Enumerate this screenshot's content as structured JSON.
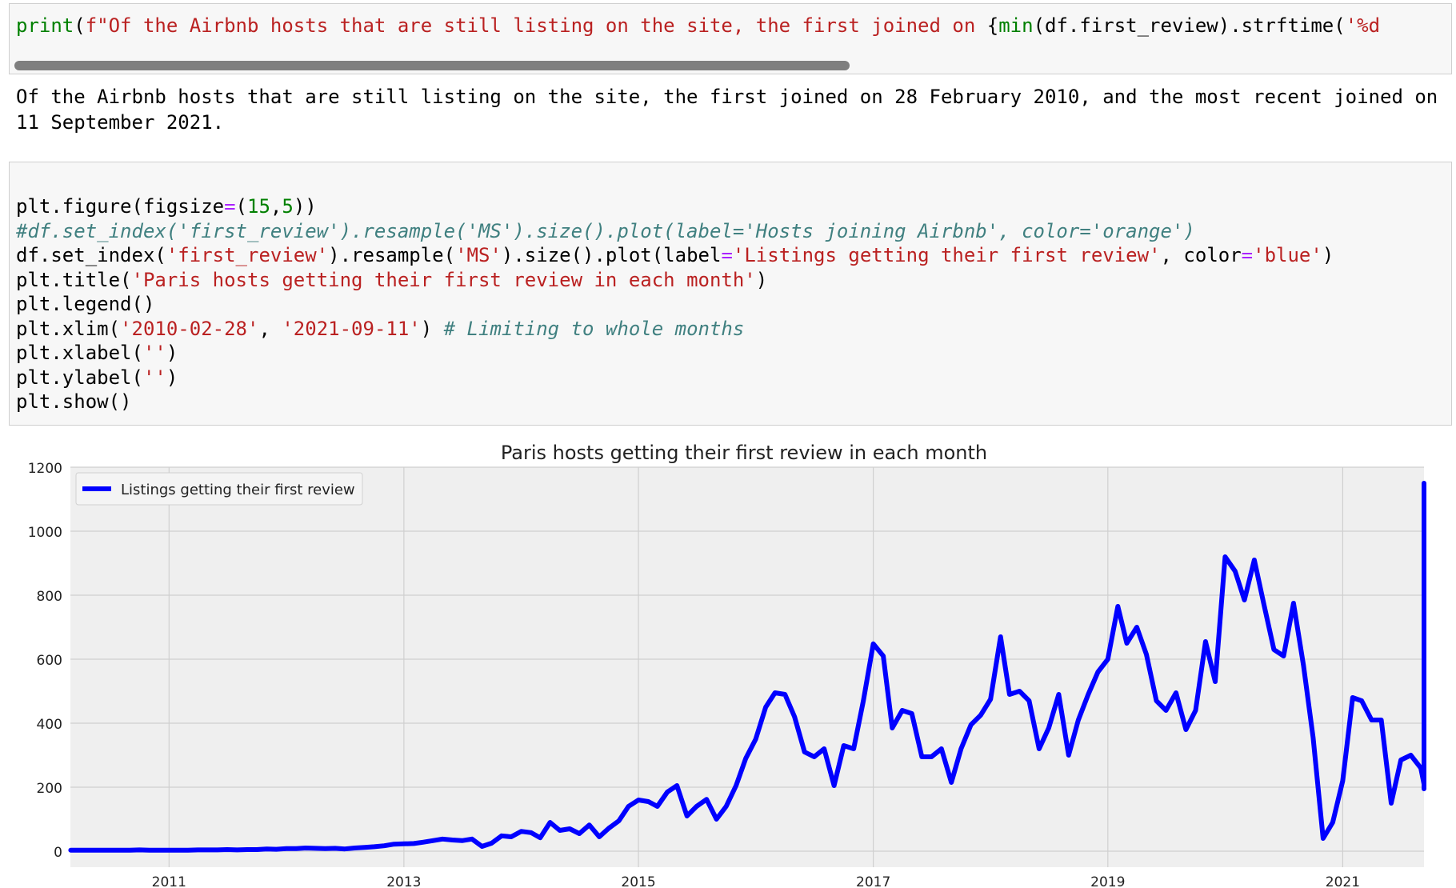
{
  "cell1": {
    "code": [
      {
        "t": "print",
        "c": "kw"
      },
      {
        "t": "("
      },
      {
        "t": "f\"Of the Airbnb hosts that are still listing on the site, the first joined on ",
        "c": "str"
      },
      {
        "t": "{"
      },
      {
        "t": "min",
        "c": "kw"
      },
      {
        "t": "(df.first_review).strftime("
      },
      {
        "t": "'%d",
        "c": "str"
      }
    ]
  },
  "output_text": "Of the Airbnb hosts that are still listing on the site, the first joined on 28 February 2010, and the most recent joined on 11 September 2021.",
  "cell2": {
    "lines": [
      [
        {
          "t": "plt.figure(figsize"
        },
        {
          "t": "=",
          "c": "op"
        },
        {
          "t": "("
        },
        {
          "t": "15",
          "c": "num"
        },
        {
          "t": ","
        },
        {
          "t": "5",
          "c": "num"
        },
        {
          "t": "))"
        }
      ],
      [
        {
          "t": "#df.set_index('first_review').resample('MS').size().plot(label='Hosts joining Airbnb', color='orange')",
          "c": "cmt"
        }
      ],
      [
        {
          "t": "df.set_index("
        },
        {
          "t": "'first_review'",
          "c": "str"
        },
        {
          "t": ").resample("
        },
        {
          "t": "'MS'",
          "c": "str"
        },
        {
          "t": ").size().plot(label"
        },
        {
          "t": "=",
          "c": "op"
        },
        {
          "t": "'Listings getting their first review'",
          "c": "str"
        },
        {
          "t": ", color"
        },
        {
          "t": "=",
          "c": "op"
        },
        {
          "t": "'blue'",
          "c": "str"
        },
        {
          "t": ")"
        }
      ],
      [
        {
          "t": "plt.title("
        },
        {
          "t": "'Paris hosts getting their first review in each month'",
          "c": "str"
        },
        {
          "t": ")"
        }
      ],
      [
        {
          "t": "plt.legend()"
        }
      ],
      [
        {
          "t": "plt.xlim("
        },
        {
          "t": "'2010-02-28'",
          "c": "str"
        },
        {
          "t": ", "
        },
        {
          "t": "'2021-09-11'",
          "c": "str"
        },
        {
          "t": ") "
        },
        {
          "t": "# Limiting to whole months",
          "c": "cmt"
        }
      ],
      [
        {
          "t": "plt.xlabel("
        },
        {
          "t": "''",
          "c": "str"
        },
        {
          "t": ")"
        }
      ],
      [
        {
          "t": "plt.ylabel("
        },
        {
          "t": "''",
          "c": "str"
        },
        {
          "t": ")"
        }
      ],
      [
        {
          "t": "plt.show()"
        }
      ]
    ]
  },
  "chart_data": {
    "type": "line",
    "title": "Paris hosts getting their first review in each month",
    "xlabel": "",
    "ylabel": "",
    "legend": "top-left",
    "grid": true,
    "xlim": [
      "2010-02-28",
      "2021-09-11"
    ],
    "ylim": [
      -50,
      1200
    ],
    "yticks": [
      0,
      200,
      400,
      600,
      800,
      1000,
      1200
    ],
    "xticks": [
      "2011",
      "2013",
      "2015",
      "2017",
      "2019",
      "2021"
    ],
    "series": [
      {
        "name": "Listings getting their first review",
        "color": "#0000ff",
        "start": "2010-03",
        "values": [
          3,
          3,
          3,
          3,
          3,
          3,
          3,
          4,
          3,
          3,
          3,
          3,
          3,
          4,
          4,
          4,
          5,
          4,
          5,
          5,
          7,
          6,
          8,
          8,
          10,
          9,
          8,
          9,
          7,
          10,
          12,
          14,
          17,
          22,
          23,
          24,
          28,
          33,
          38,
          35,
          33,
          38,
          15,
          25,
          48,
          45,
          62,
          58,
          42,
          90,
          65,
          70,
          55,
          82,
          45,
          72,
          95,
          140,
          160,
          155,
          140,
          185,
          205,
          110,
          140,
          162,
          100,
          140,
          205,
          290,
          350,
          450,
          495,
          490,
          420,
          310,
          295,
          320,
          205,
          330,
          320,
          470,
          648,
          610,
          385,
          440,
          430,
          295,
          295,
          320,
          215,
          320,
          395,
          425,
          475,
          670,
          490,
          500,
          470,
          320,
          385,
          490,
          300,
          410,
          490,
          560,
          600,
          765,
          650,
          700,
          615,
          470,
          440,
          495,
          380,
          440,
          655,
          530,
          920,
          875,
          785,
          910,
          770,
          630,
          610,
          775,
          580,
          355,
          40,
          90,
          220,
          480,
          470,
          410,
          410,
          150,
          285,
          300,
          260,
          210,
          200,
          370,
          625,
          1040,
          1150,
          570,
          195
        ]
      }
    ]
  }
}
